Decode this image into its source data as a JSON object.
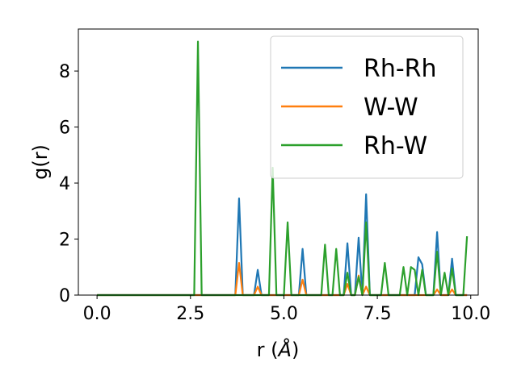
{
  "chart_data": {
    "type": "line",
    "xlabel_text": "r (",
    "xlabel_unit": "Å",
    "xlabel_close": ")",
    "ylabel": "g(r)",
    "xlim": [
      -0.5,
      10.2
    ],
    "ylim": [
      0,
      9.5
    ],
    "xticks": [
      0.0,
      2.5,
      5.0,
      7.5,
      10.0
    ],
    "xtick_labels": [
      "0.0",
      "2.5",
      "5.0",
      "7.5",
      "10.0"
    ],
    "yticks": [
      0,
      2,
      4,
      6,
      8
    ],
    "ytick_labels": [
      "0",
      "2",
      "4",
      "6",
      "8"
    ],
    "grid": false,
    "legend_position": "top-right",
    "series": [
      {
        "name": "Rh-Rh",
        "color": "#1f77b4",
        "points": [
          [
            0.0,
            0
          ],
          [
            3.7,
            0
          ],
          [
            3.8,
            3.45
          ],
          [
            3.9,
            0
          ],
          [
            4.2,
            0
          ],
          [
            4.3,
            0.9
          ],
          [
            4.4,
            0
          ],
          [
            5.4,
            0
          ],
          [
            5.5,
            1.65
          ],
          [
            5.6,
            0
          ],
          [
            6.6,
            0
          ],
          [
            6.7,
            1.85
          ],
          [
            6.8,
            0
          ],
          [
            6.9,
            0
          ],
          [
            7.0,
            2.05
          ],
          [
            7.1,
            0
          ],
          [
            7.2,
            3.6
          ],
          [
            7.3,
            0
          ],
          [
            8.5,
            0
          ],
          [
            8.6,
            1.35
          ],
          [
            8.7,
            1.1
          ],
          [
            8.8,
            0
          ],
          [
            9.0,
            0
          ],
          [
            9.1,
            2.25
          ],
          [
            9.2,
            0
          ],
          [
            9.4,
            0
          ],
          [
            9.5,
            1.3
          ],
          [
            9.6,
            0
          ],
          [
            9.9,
            0
          ]
        ]
      },
      {
        "name": "W-W",
        "color": "#ff7f0e",
        "points": [
          [
            0.0,
            0
          ],
          [
            3.7,
            0
          ],
          [
            3.8,
            1.15
          ],
          [
            3.9,
            0
          ],
          [
            4.2,
            0
          ],
          [
            4.3,
            0.3
          ],
          [
            4.4,
            0
          ],
          [
            5.4,
            0
          ],
          [
            5.5,
            0.55
          ],
          [
            5.6,
            0
          ],
          [
            6.6,
            0
          ],
          [
            6.7,
            0.4
          ],
          [
            6.8,
            0
          ],
          [
            6.9,
            0
          ],
          [
            7.0,
            0.7
          ],
          [
            7.1,
            0
          ],
          [
            7.2,
            0.3
          ],
          [
            7.3,
            0
          ],
          [
            9.0,
            0
          ],
          [
            9.1,
            0.2
          ],
          [
            9.2,
            0
          ],
          [
            9.4,
            0
          ],
          [
            9.5,
            0.2
          ],
          [
            9.6,
            0
          ],
          [
            9.9,
            0
          ]
        ]
      },
      {
        "name": "Rh-W",
        "color": "#2ca02c",
        "points": [
          [
            0.0,
            0
          ],
          [
            2.6,
            0
          ],
          [
            2.7,
            9.05
          ],
          [
            2.8,
            0
          ],
          [
            4.6,
            0
          ],
          [
            4.7,
            4.55
          ],
          [
            4.8,
            0
          ],
          [
            5.0,
            0
          ],
          [
            5.1,
            2.6
          ],
          [
            5.2,
            0
          ],
          [
            6.0,
            0
          ],
          [
            6.1,
            1.8
          ],
          [
            6.2,
            0
          ],
          [
            6.3,
            0
          ],
          [
            6.4,
            1.65
          ],
          [
            6.5,
            0
          ],
          [
            6.6,
            0
          ],
          [
            6.7,
            0.8
          ],
          [
            6.8,
            0
          ],
          [
            6.9,
            0
          ],
          [
            7.0,
            0.65
          ],
          [
            7.1,
            0
          ],
          [
            7.2,
            2.6
          ],
          [
            7.3,
            0
          ],
          [
            7.6,
            0
          ],
          [
            7.7,
            1.15
          ],
          [
            7.8,
            0
          ],
          [
            8.1,
            0
          ],
          [
            8.2,
            1.0
          ],
          [
            8.3,
            0
          ],
          [
            8.4,
            1.0
          ],
          [
            8.5,
            0.9
          ],
          [
            8.6,
            0
          ],
          [
            8.7,
            0.9
          ],
          [
            8.8,
            0
          ],
          [
            9.0,
            0
          ],
          [
            9.1,
            1.55
          ],
          [
            9.2,
            0
          ],
          [
            9.3,
            0.8
          ],
          [
            9.4,
            0
          ],
          [
            9.5,
            0.95
          ],
          [
            9.6,
            0
          ],
          [
            9.8,
            0
          ],
          [
            9.9,
            2.1
          ]
        ]
      }
    ]
  }
}
